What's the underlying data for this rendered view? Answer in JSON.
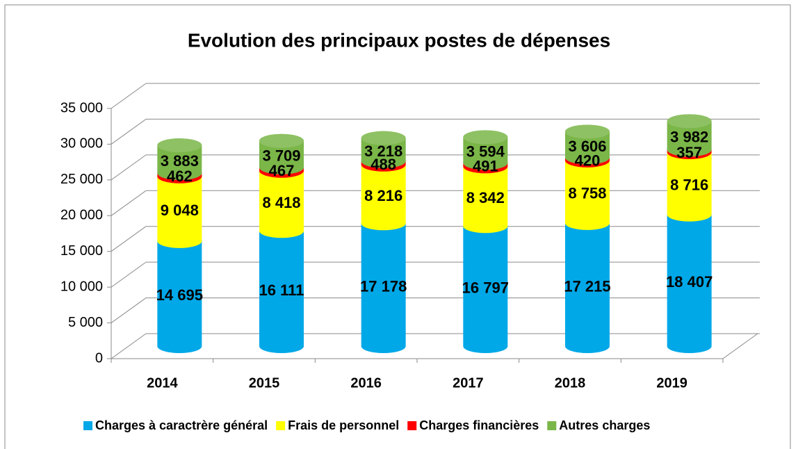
{
  "chart_data": {
    "type": "bar3d_stacked",
    "title": "Evolution des principaux postes de dépenses",
    "categories": [
      "2014",
      "2015",
      "2016",
      "2017",
      "2018",
      "2019"
    ],
    "series": [
      {
        "name": "Charges à caractrère général",
        "color": "#00a8e8",
        "values": [
          14695,
          16111,
          17178,
          16797,
          17215,
          18407
        ],
        "value_labels": [
          "14 695",
          "16 111",
          "17 178",
          "16 797",
          "17 215",
          "18 407"
        ]
      },
      {
        "name": "Frais de personnel",
        "color": "#ffff00",
        "values": [
          9048,
          8418,
          8216,
          8342,
          8758,
          8716
        ],
        "value_labels": [
          "9 048",
          "8 418",
          "8 216",
          "8 342",
          "8 758",
          "8 716"
        ]
      },
      {
        "name": "Charges financières",
        "color": "#ff0000",
        "values": [
          462,
          467,
          488,
          491,
          420,
          357
        ]
      },
      {
        "name": "Autres charges",
        "color": "#7ab648",
        "values": [
          3883,
          3709,
          3218,
          3594,
          3606,
          3982
        ],
        "value_labels": [
          "3 883",
          "3 709",
          "3 218",
          "3 594",
          "3 606",
          "3 982"
        ]
      }
    ],
    "ylim": [
      0,
      35000
    ],
    "yticks": [
      0,
      {
        "value": 5000,
        "label": "5 000"
      },
      {
        "value": 10000,
        "label": "10 000"
      },
      {
        "value": 15000,
        "label": "15 000"
      },
      {
        "value": 20000,
        "label": "20 000"
      },
      {
        "value": 25000,
        "label": "25 000"
      },
      {
        "value": 30000,
        "label": "30 000"
      },
      {
        "value": 35000,
        "label": "35 000"
      }
    ],
    "grid": true,
    "legend": "bottom"
  }
}
